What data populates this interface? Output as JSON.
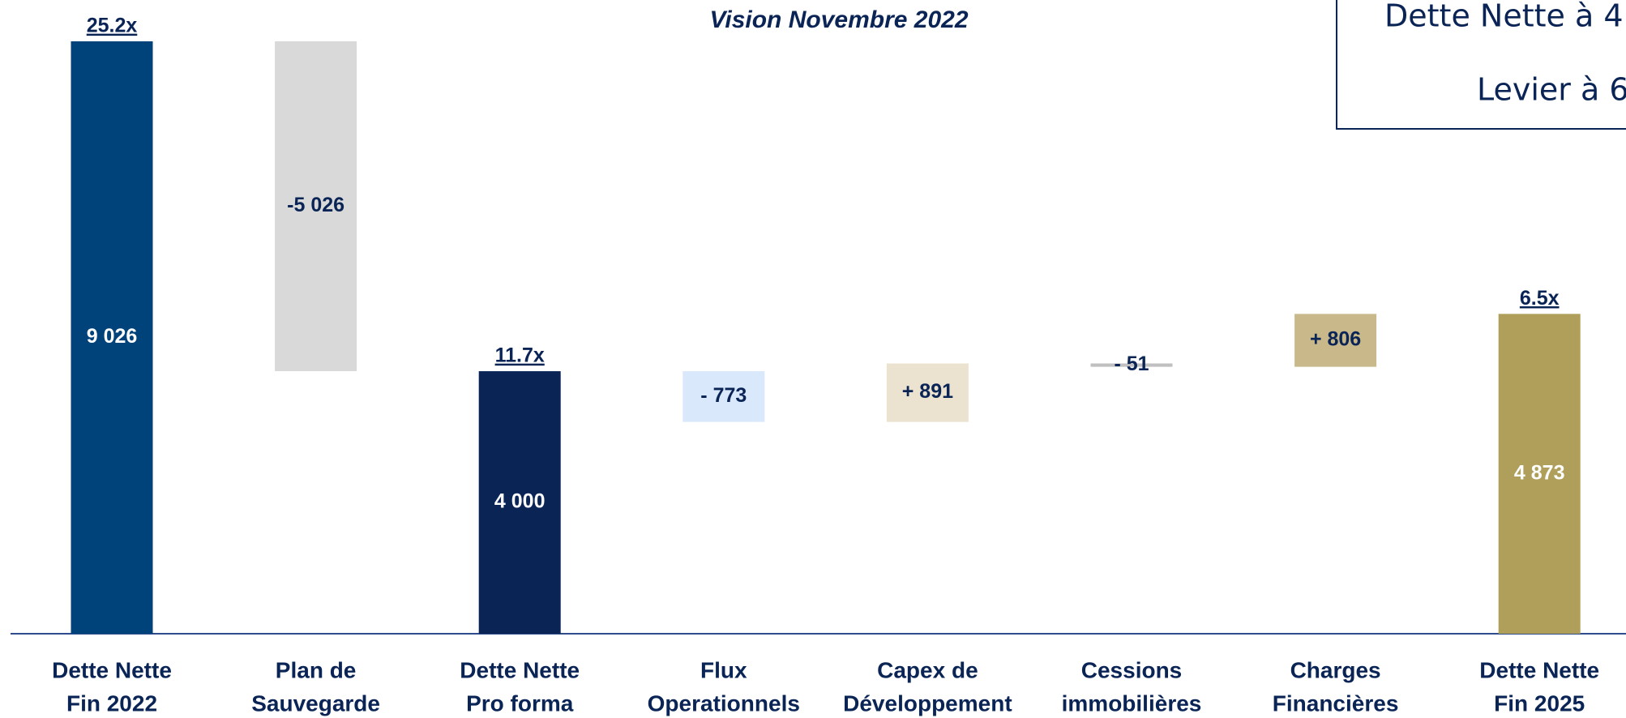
{
  "chart_data": {
    "type": "waterfall",
    "title": "Vision Novembre 2022",
    "box_lines": [
      "Dette Nette à 4",
      "Levier à 6"
    ],
    "categories": [
      [
        "Dette Nette",
        "Fin 2022"
      ],
      [
        "Plan de",
        "Sauvegarde"
      ],
      [
        "Dette Nette",
        "Pro forma"
      ],
      [
        "Flux",
        "Operationnels"
      ],
      [
        "Capex de",
        "Développement"
      ],
      [
        "Cessions",
        "immobilières"
      ],
      [
        "Charges",
        "Financières"
      ],
      [
        "Dette Nette",
        "Fin 2025"
      ]
    ],
    "measures": [
      "total",
      "relative",
      "total",
      "relative",
      "relative",
      "relative",
      "relative",
      "total"
    ],
    "values": [
      9026,
      -5026,
      4000,
      -773,
      891,
      -51,
      806,
      4873
    ],
    "value_labels": [
      "9 026",
      "-5 026",
      "4 000",
      "- 773",
      "+ 891",
      "- 51",
      "+ 806",
      "4 873"
    ],
    "multiples": [
      "25.2x",
      null,
      "11.7x",
      null,
      null,
      null,
      null,
      "6.5x"
    ],
    "colors": [
      "#00427a",
      "#d9d9d9",
      "#0a2456",
      "#dae8fc",
      "#ebe3d0",
      "#c0c0c0",
      "#c9b98a",
      "#b09f5a"
    ]
  }
}
